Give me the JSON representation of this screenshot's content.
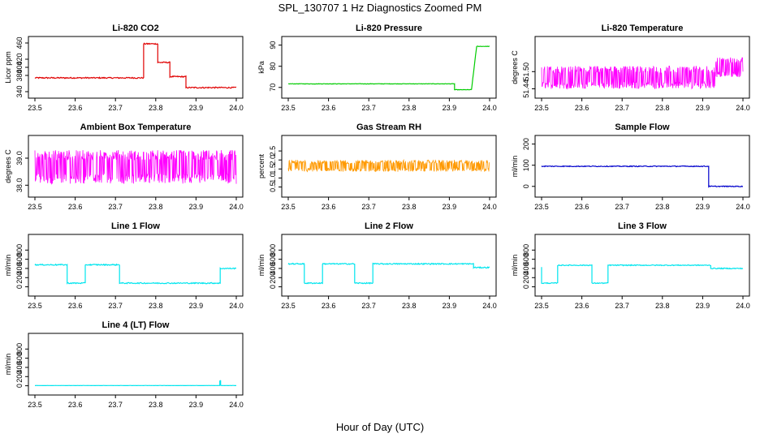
{
  "main_title": "SPL_130707  1 Hz Diagnostics Zoomed PM",
  "x_label": "Hour of Day (UTC)",
  "chart_data": [
    {
      "type": "line",
      "title": "Li-820 CO2",
      "ylabel": "Licor ppm",
      "color": "#e00000",
      "xlim": [
        23.5,
        24.0
      ],
      "ylim": [
        340,
        460
      ],
      "x_ticks": [
        "23.5",
        "23.6",
        "23.7",
        "23.8",
        "23.9",
        "24.0"
      ],
      "y_ticks": [
        340,
        380,
        400,
        420,
        460
      ],
      "y_tick_labels": [
        "340",
        "380",
        "400",
        "420",
        "460"
      ],
      "noise": 1.5,
      "x": [
        23.5,
        23.77,
        23.77,
        23.805,
        23.805,
        23.835,
        23.835,
        23.875,
        23.875,
        24.0
      ],
      "y": [
        374,
        374,
        458,
        458,
        412,
        412,
        377,
        377,
        350,
        350
      ]
    },
    {
      "type": "line",
      "title": "Li-820 Pressure",
      "ylabel": "kPa",
      "color": "#00cc00",
      "xlim": [
        23.5,
        24.0
      ],
      "ylim": [
        68,
        91
      ],
      "x_ticks": [
        "23.5",
        "23.6",
        "23.7",
        "23.8",
        "23.9",
        "24.0"
      ],
      "y_ticks": [
        70,
        80,
        90
      ],
      "y_tick_labels": [
        "70",
        "80",
        "90"
      ],
      "noise": 0.1,
      "x": [
        23.5,
        23.913,
        23.913,
        23.955,
        23.965,
        23.968,
        24.0
      ],
      "y": [
        71.7,
        71.7,
        68.9,
        68.9,
        85,
        89.4,
        89.4
      ]
    },
    {
      "type": "band",
      "title": "Li-820 Temperature",
      "ylabel": "degrees C",
      "color": "#ff00ff",
      "xlim": [
        23.5,
        24.0
      ],
      "ylim": [
        51.43,
        51.6
      ],
      "x_ticks": [
        "23.5",
        "23.6",
        "23.7",
        "23.8",
        "23.9",
        "24.0"
      ],
      "y_ticks": [
        51.44,
        51.5
      ],
      "y_tick_labels": [
        "51.44",
        "51.50"
      ],
      "x": [
        23.5,
        23.93,
        23.93,
        24.0
      ],
      "lo": [
        51.44,
        51.44,
        51.48,
        51.48
      ],
      "hi": [
        51.52,
        51.52,
        51.55,
        51.55
      ]
    },
    {
      "type": "band",
      "title": "Ambient Box Temperature",
      "ylabel": "degrees C",
      "color": "#ff00ff",
      "xlim": [
        23.5,
        24.0
      ],
      "ylim": [
        37.8,
        39.6
      ],
      "x_ticks": [
        "23.5",
        "23.6",
        "23.7",
        "23.8",
        "23.9",
        "24.0"
      ],
      "y_ticks": [
        38.0,
        39.0
      ],
      "y_tick_labels": [
        "38.0",
        "39.0"
      ],
      "x": [
        23.5,
        24.0
      ],
      "lo": [
        38.05,
        38.05
      ],
      "hi": [
        39.3,
        39.3
      ]
    },
    {
      "type": "band",
      "title": "Gas Stream RH",
      "ylabel": "percent",
      "color": "#ff9900",
      "xlim": [
        23.5,
        24.0
      ],
      "ylim": [
        0.3,
        3.0
      ],
      "x_ticks": [
        "23.5",
        "23.6",
        "23.7",
        "23.8",
        "23.9",
        "24.0"
      ],
      "y_ticks": [
        0.5,
        1.0,
        1.5,
        2.0,
        2.5
      ],
      "y_tick_labels": [
        "0.5",
        "1.0",
        "1.5",
        "2.0",
        "2.5"
      ],
      "x": [
        23.5,
        24.0
      ],
      "lo": [
        1.35,
        1.35
      ],
      "hi": [
        2.0,
        2.0
      ]
    },
    {
      "type": "line",
      "title": "Sample Flow",
      "ylabel": "ml/min",
      "color": "#0000cc",
      "xlim": [
        23.5,
        24.0
      ],
      "ylim": [
        -20,
        210
      ],
      "x_ticks": [
        "23.5",
        "23.6",
        "23.7",
        "23.8",
        "23.9",
        "24.0"
      ],
      "y_ticks": [
        0,
        100,
        200
      ],
      "y_tick_labels": [
        "0",
        "100",
        "200"
      ],
      "noise": 2,
      "x": [
        23.5,
        23.915,
        23.915,
        24.0
      ],
      "y": [
        95,
        95,
        0,
        0
      ]
    },
    {
      "type": "line",
      "title": "Line 1 Flow",
      "ylabel": "ml/min",
      "color": "#00e5ee",
      "xlim": [
        23.5,
        24.0
      ],
      "ylim": [
        -60,
        1000
      ],
      "x_ticks": [
        "23.5",
        "23.6",
        "23.7",
        "23.8",
        "23.9",
        "24.0"
      ],
      "y_ticks": [
        0,
        200,
        400,
        600,
        800
      ],
      "y_tick_labels": [
        "0",
        "200",
        "400",
        "600",
        "800"
      ],
      "noise": 12,
      "x": [
        23.5,
        23.58,
        23.58,
        23.625,
        23.625,
        23.71,
        23.71,
        23.96,
        23.96,
        24.0
      ],
      "y": [
        480,
        480,
        80,
        80,
        480,
        480,
        80,
        80,
        400,
        400
      ]
    },
    {
      "type": "line",
      "title": "Line 2 Flow",
      "ylabel": "ml/min",
      "color": "#00e5ee",
      "xlim": [
        23.5,
        24.0
      ],
      "ylim": [
        -60,
        1000
      ],
      "x_ticks": [
        "23.5",
        "23.6",
        "23.7",
        "23.8",
        "23.9",
        "24.0"
      ],
      "y_ticks": [
        0,
        200,
        400,
        600,
        800
      ],
      "y_tick_labels": [
        "0",
        "200",
        "400",
        "600",
        "800"
      ],
      "noise": 12,
      "x": [
        23.5,
        23.54,
        23.54,
        23.585,
        23.585,
        23.665,
        23.665,
        23.71,
        23.71,
        23.96,
        23.96,
        24.0
      ],
      "y": [
        500,
        500,
        80,
        80,
        500,
        500,
        80,
        80,
        500,
        500,
        420,
        420
      ]
    },
    {
      "type": "line",
      "title": "Line 3 Flow",
      "ylabel": "ml/min",
      "color": "#00e5ee",
      "xlim": [
        23.5,
        24.0
      ],
      "ylim": [
        -60,
        1000
      ],
      "x_ticks": [
        "23.5",
        "23.6",
        "23.7",
        "23.8",
        "23.9",
        "24.0"
      ],
      "y_ticks": [
        0,
        200,
        400,
        600,
        800
      ],
      "y_tick_labels": [
        "0",
        "200",
        "400",
        "600",
        "800"
      ],
      "noise": 10,
      "x": [
        23.5,
        23.5,
        23.54,
        23.54,
        23.625,
        23.625,
        23.665,
        23.665,
        23.92,
        23.92,
        24.0
      ],
      "y": [
        430,
        80,
        80,
        470,
        470,
        80,
        80,
        470,
        470,
        400,
        400
      ]
    },
    {
      "type": "line",
      "title": "Line 4 (LT) Flow",
      "ylabel": "ml/min",
      "color": "#00e5ee",
      "xlim": [
        23.5,
        24.0
      ],
      "ylim": [
        -60,
        1000
      ],
      "x_ticks": [
        "23.5",
        "23.6",
        "23.7",
        "23.8",
        "23.9",
        "24.0"
      ],
      "y_ticks": [
        0,
        200,
        400,
        600,
        800
      ],
      "y_tick_labels": [
        "0",
        "200",
        "400",
        "600",
        "800"
      ],
      "noise": 2,
      "x": [
        23.5,
        23.959,
        23.959,
        23.961,
        23.961,
        24.0
      ],
      "y": [
        5,
        5,
        110,
        110,
        5,
        5
      ]
    }
  ]
}
